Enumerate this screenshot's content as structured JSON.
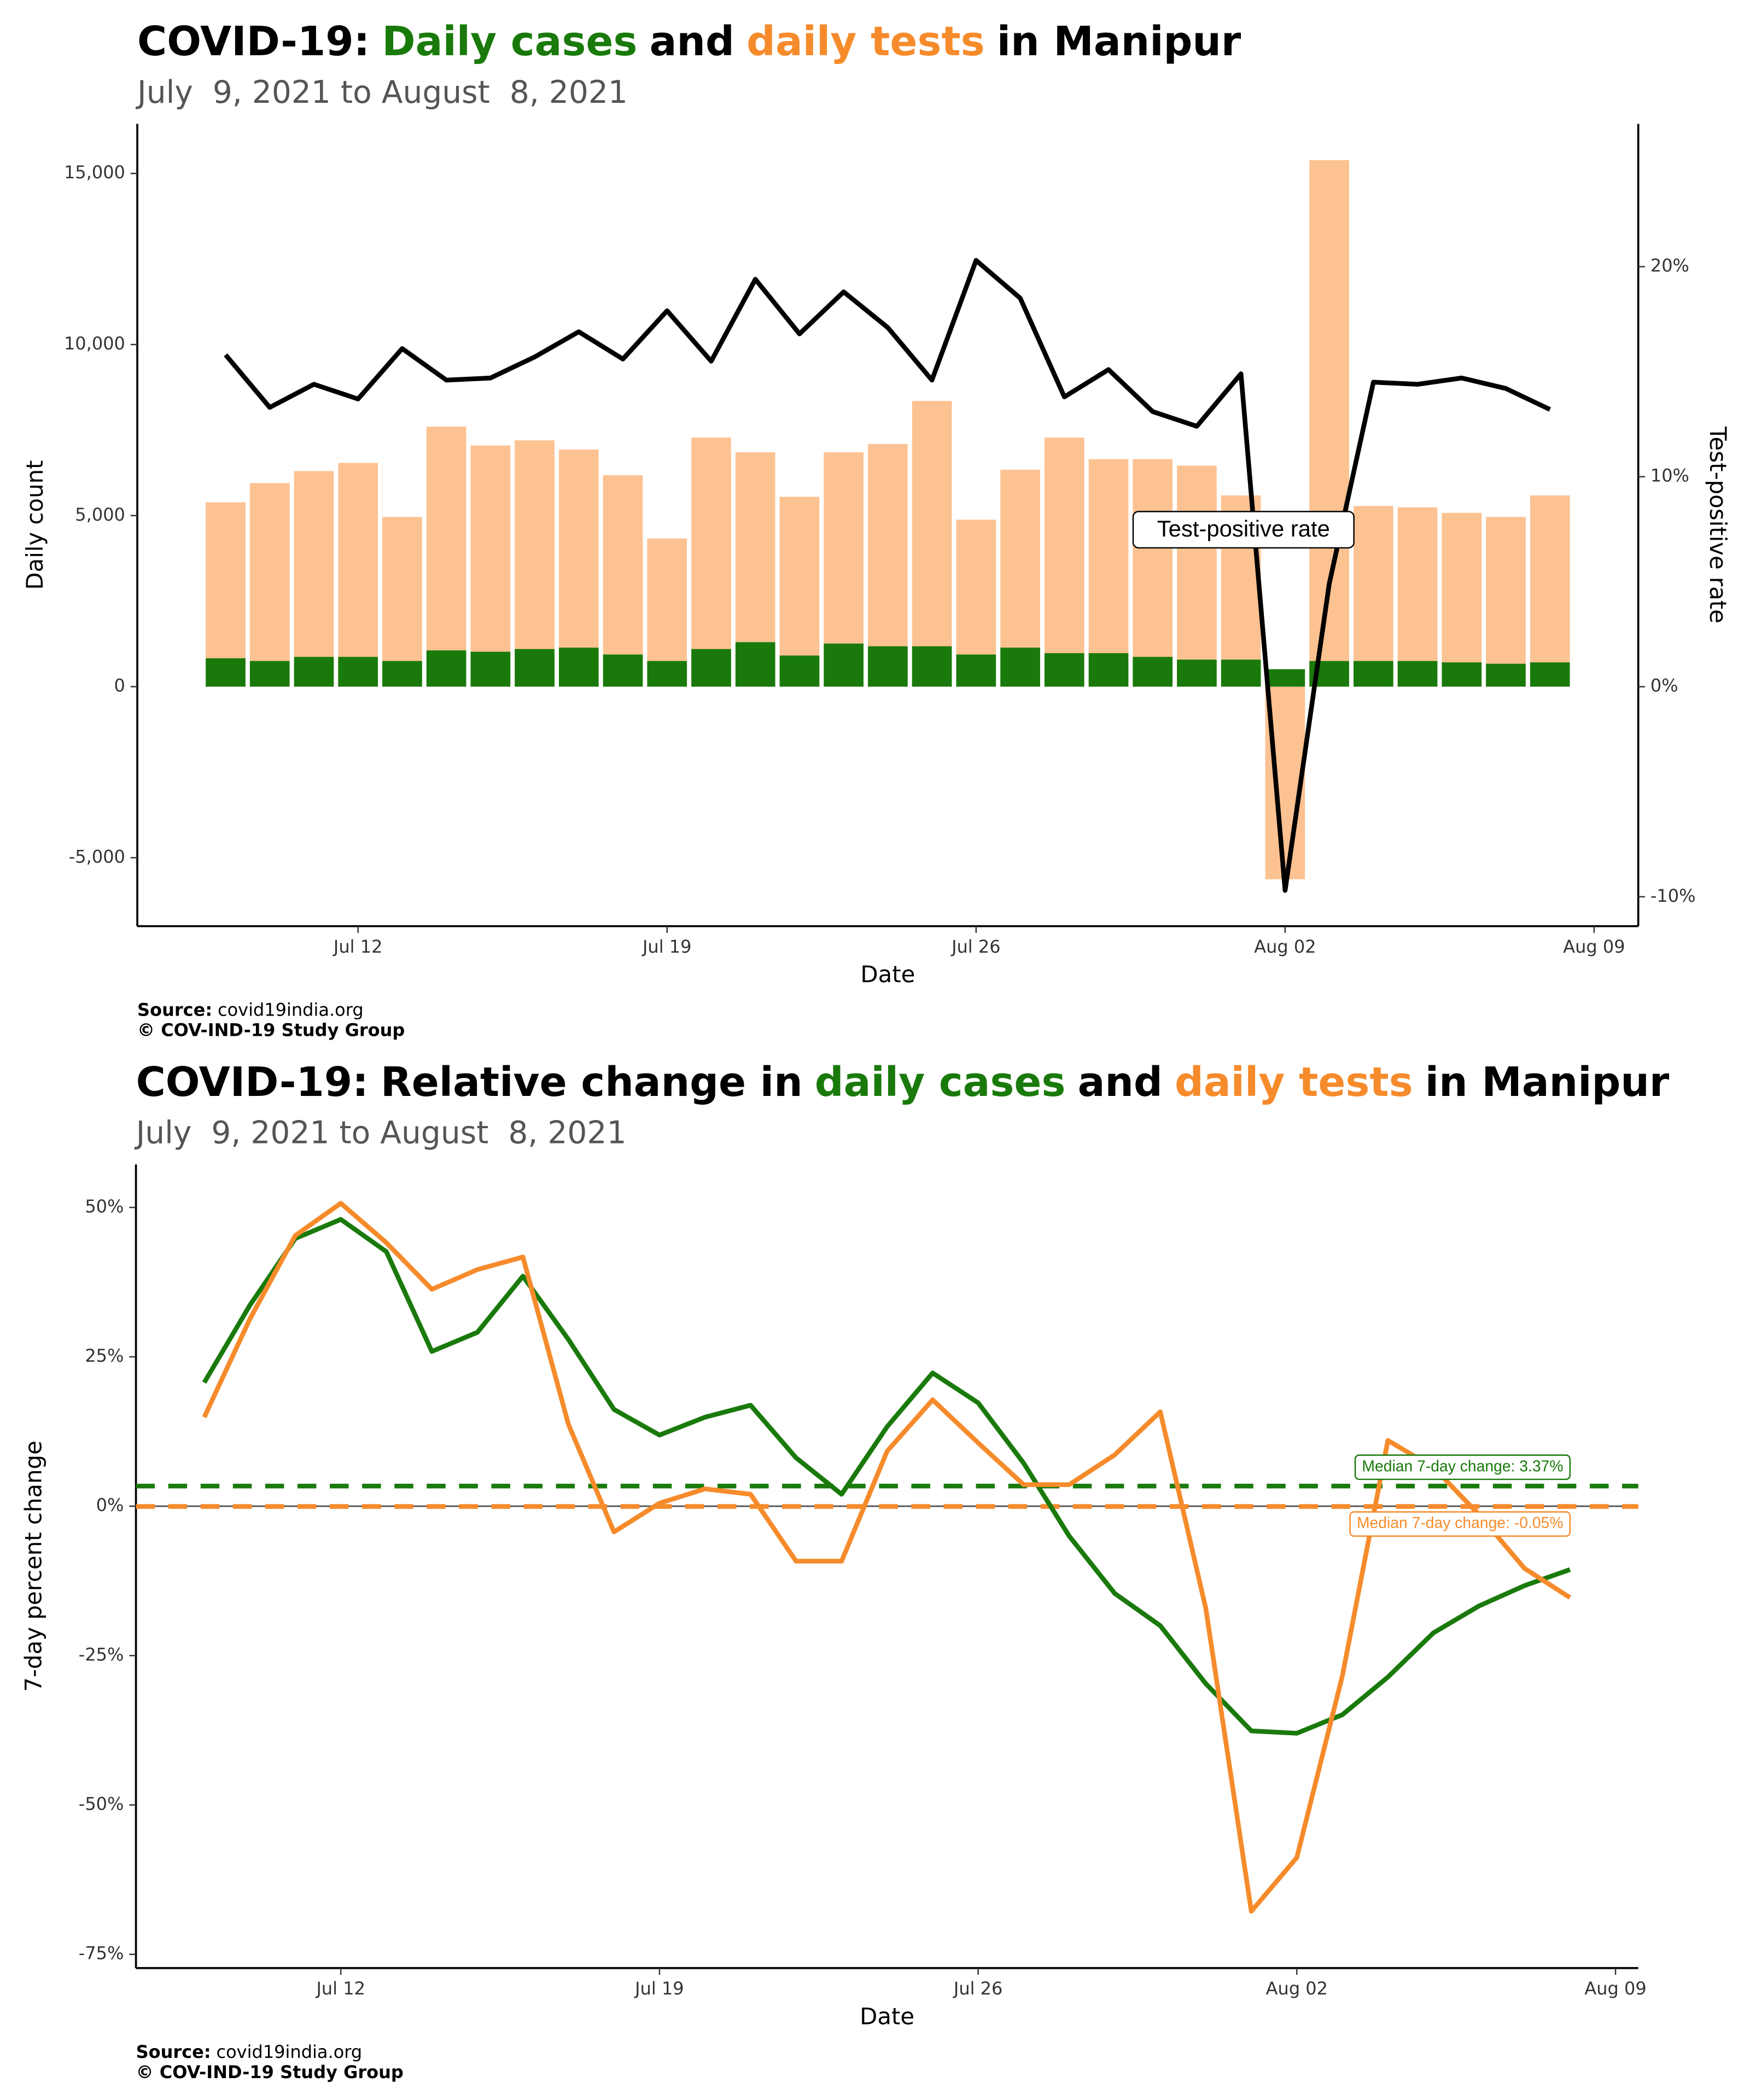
{
  "chart_data": [
    {
      "type": "bar",
      "title": [
        "COVID-19:",
        "Daily cases",
        "and",
        "daily tests",
        "in Manipur"
      ],
      "title_colors": [
        "#000000",
        "#197a0b",
        "#000000",
        "#f68b2b",
        "#000000"
      ],
      "subtitle": "July  9, 2021 to August  8, 2021",
      "xlabel": "Date",
      "ylabel": "Daily count",
      "y2label": "Test-positive rate",
      "source_label": "Source:",
      "source": "covid19india.org",
      "copyright": "© COV-IND-19 Study Group",
      "annotation": "Test-positive rate",
      "x": [
        "2021-07-09",
        "2021-07-10",
        "2021-07-11",
        "2021-07-12",
        "2021-07-13",
        "2021-07-14",
        "2021-07-15",
        "2021-07-16",
        "2021-07-17",
        "2021-07-18",
        "2021-07-19",
        "2021-07-20",
        "2021-07-21",
        "2021-07-22",
        "2021-07-23",
        "2021-07-24",
        "2021-07-25",
        "2021-07-26",
        "2021-07-27",
        "2021-07-28",
        "2021-07-29",
        "2021-07-30",
        "2021-07-31",
        "2021-08-01",
        "2021-08-02",
        "2021-08-03",
        "2021-08-04",
        "2021-08-05",
        "2021-08-06",
        "2021-08-07",
        "2021-08-08"
      ],
      "xlim": [
        "2021-07-07",
        "2021-08-10"
      ],
      "xticks": [
        {
          "value": "2021-07-12",
          "label": "Jul 12"
        },
        {
          "value": "2021-07-19",
          "label": "Jul 19"
        },
        {
          "value": "2021-07-26",
          "label": "Jul 26"
        },
        {
          "value": "2021-08-02",
          "label": "Aug 02"
        },
        {
          "value": "2021-08-09",
          "label": "Aug 09"
        }
      ],
      "ylim": [
        -7000,
        16450
      ],
      "yticks": [
        {
          "value": -5000,
          "label": "-5,000"
        },
        0,
        {
          "value": 5000,
          "label": "5,000"
        },
        {
          "value": 10000,
          "label": "10,000"
        },
        {
          "value": 15000,
          "label": "15,000"
        }
      ],
      "y2lim": [
        -11.4,
        26.8
      ],
      "y2ticks": [
        {
          "value": -10,
          "label": "-10%"
        },
        {
          "value": 0,
          "label": "0%"
        },
        {
          "value": 10,
          "label": "10%"
        },
        {
          "value": 20,
          "label": "20%"
        }
      ],
      "series": [
        {
          "type": "bar",
          "color": "#fdc292",
          "values": [
            5390,
            5950,
            6300,
            6540,
            4960,
            7600,
            7050,
            7200,
            6930,
            6180,
            4330,
            7280,
            6850,
            5550,
            6850,
            7090,
            8350,
            4880,
            6340,
            7280,
            6650,
            6650,
            6460,
            5590,
            -5630,
            15390,
            5280,
            5240,
            5080,
            4960,
            5590
          ]
        },
        {
          "type": "bar",
          "color": "#197a0b",
          "values": [
            830,
            750,
            870,
            870,
            750,
            1060,
            1020,
            1100,
            1140,
            940,
            750,
            1100,
            1300,
            910,
            1260,
            1180,
            1180,
            940,
            1140,
            980,
            980,
            870,
            790,
            790,
            510,
            750,
            750,
            750,
            710,
            670,
            710
          ]
        },
        {
          "type": "line",
          "axis": "y2",
          "color": "#000000",
          "values": [
            15.8,
            13.3,
            14.4,
            13.7,
            16.1,
            14.6,
            14.7,
            15.7,
            16.9,
            15.6,
            17.9,
            15.5,
            19.4,
            16.8,
            18.8,
            17.1,
            14.6,
            20.3,
            18.5,
            13.8,
            15.1,
            13.1,
            12.4,
            14.9,
            -9.7,
            4.9,
            14.5,
            14.4,
            14.7,
            14.2,
            13.2
          ]
        }
      ]
    },
    {
      "type": "line",
      "title": [
        "COVID-19:",
        "Relative change in",
        "daily cases",
        "and",
        "daily tests",
        "in Manipur"
      ],
      "title_colors": [
        "#000000",
        "#000000",
        "#197a0b",
        "#000000",
        "#f68b2b",
        "#000000"
      ],
      "subtitle": "July  9, 2021 to August  8, 2021",
      "xlabel": "Date",
      "ylabel": "7-day percent change",
      "source_label": "Source:",
      "source": "covid19india.org",
      "copyright": "© COV-IND-19 Study Group",
      "x": [
        "2021-07-09",
        "2021-07-10",
        "2021-07-11",
        "2021-07-12",
        "2021-07-13",
        "2021-07-14",
        "2021-07-15",
        "2021-07-16",
        "2021-07-17",
        "2021-07-18",
        "2021-07-19",
        "2021-07-20",
        "2021-07-21",
        "2021-07-22",
        "2021-07-23",
        "2021-07-24",
        "2021-07-25",
        "2021-07-26",
        "2021-07-27",
        "2021-07-28",
        "2021-07-29",
        "2021-07-30",
        "2021-07-31",
        "2021-08-01",
        "2021-08-02",
        "2021-08-03",
        "2021-08-04",
        "2021-08-05",
        "2021-08-06",
        "2021-08-07",
        "2021-08-08"
      ],
      "xlim": [
        "2021-07-07T12:00",
        "2021-08-09T12:00"
      ],
      "xticks": [
        {
          "value": "2021-07-12",
          "label": "Jul 12"
        },
        {
          "value": "2021-07-19",
          "label": "Jul 19"
        },
        {
          "value": "2021-07-26",
          "label": "Jul 26"
        },
        {
          "value": "2021-08-02",
          "label": "Aug 02"
        },
        {
          "value": "2021-08-09",
          "label": "Aug 09"
        }
      ],
      "ylim": [
        -77.3,
        57.2
      ],
      "yticks": [
        {
          "value": -75,
          "label": "-75%"
        },
        {
          "value": -50,
          "label": "-50%"
        },
        {
          "value": -25,
          "label": "-25%"
        },
        {
          "value": 0,
          "label": "0%"
        },
        {
          "value": 25,
          "label": "25%"
        },
        {
          "value": 50,
          "label": "50%"
        }
      ],
      "series": [
        {
          "color": "#197a0b",
          "values": [
            20.7,
            33.6,
            44.8,
            48.0,
            42.6,
            25.9,
            29.1,
            38.5,
            27.9,
            16.2,
            11.9,
            14.9,
            16.9,
            8.1,
            2.0,
            13.3,
            22.3,
            17.3,
            7.2,
            -5.0,
            -14.6,
            -20.0,
            -29.7,
            -37.6,
            -38.0,
            -34.9,
            -28.6,
            -21.2,
            -16.7,
            -13.3,
            -10.6
          ]
        },
        {
          "color": "#f68b2b",
          "values": [
            14.9,
            31.3,
            45.3,
            50.7,
            44.1,
            36.3,
            39.6,
            41.7,
            13.7,
            -4.3,
            0.5,
            2.9,
            2.0,
            -9.2,
            -9.2,
            9.2,
            17.8,
            10.6,
            3.6,
            3.6,
            8.6,
            15.8,
            -17.1,
            -67.8,
            -58.8,
            -28.4,
            11.0,
            6.5,
            -1.4,
            -10.4,
            -15.3
          ]
        }
      ],
      "hlines": [
        {
          "value": 3.37,
          "label": "Median 7-day change: 3.37%",
          "color": "#197a0b"
        },
        {
          "value": -0.05,
          "label": "Median 7-day change: -0.05%",
          "color": "#f68b2b"
        }
      ]
    }
  ]
}
